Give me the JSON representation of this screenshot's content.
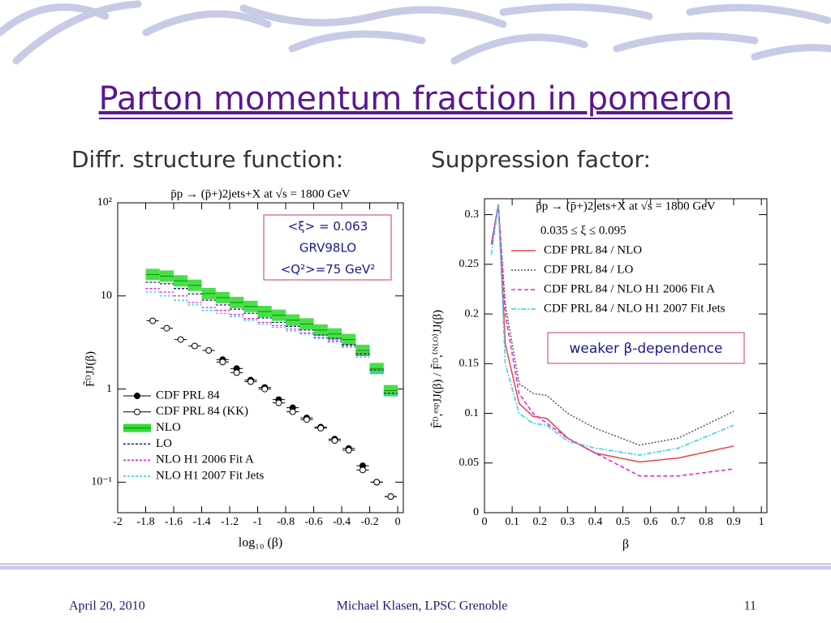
{
  "slide": {
    "title": "Parton momentum fraction in pomeron",
    "left_heading": "Diffr. structure function:",
    "right_heading": "Suppression factor:",
    "footer_date": "April 20, 2010",
    "footer_author": "Michael Klasen, LPSC Grenoble",
    "footer_page": "11"
  },
  "chart_data": [
    {
      "type": "scatter",
      "title": "p̄p → (p̄+)2jets+X  at √s = 1800 GeV",
      "x_label": "log₁₀ (β)",
      "y_label": "F̃ᴰJJ(β)",
      "annotation": [
        "<ξ> = 0.063",
        "GRV98LO",
        "<Q²>=75 GeV²"
      ],
      "log_y": true,
      "legend": "lower left",
      "xlim": [
        -2,
        0.04
      ],
      "xticks": [
        -2,
        -1.8,
        -1.6,
        -1.4,
        -1.2,
        -1,
        -0.8,
        -0.6,
        -0.4,
        -0.2,
        0
      ],
      "ylim": [
        0.047,
        100
      ],
      "yticks": [
        {
          "value": 100,
          "label": "10²"
        },
        10,
        1,
        {
          "value": 0.1,
          "label": "10⁻¹"
        }
      ],
      "series": [
        {
          "name": "CDF PRL 84",
          "marker": "filled",
          "color": "#000000",
          "x": [
            -1.25,
            -1.15,
            -1.05,
            -0.95,
            -0.85,
            -0.75,
            -0.65,
            -0.55,
            -0.45,
            -0.35,
            -0.25,
            -0.15,
            -0.05
          ],
          "values": [
            2.07,
            1.66,
            1.25,
            1.04,
            0.77,
            0.63,
            0.49,
            0.39,
            0.29,
            0.23,
            0.15,
            0.1,
            0.07
          ]
        },
        {
          "name": "CDF PRL 84 (KK)",
          "marker": "open",
          "color": "#000000",
          "x": [
            -1.75,
            -1.65,
            -1.55,
            -1.45,
            -1.35,
            -1.25,
            -1.15,
            -1.05,
            -0.95,
            -0.85,
            -0.75,
            -0.65,
            -0.55,
            -0.45,
            -0.35,
            -0.25,
            -0.15,
            -0.05
          ],
          "values": [
            5.4,
            4.5,
            3.4,
            2.9,
            2.6,
            1.95,
            1.5,
            1.2,
            1.0,
            0.71,
            0.57,
            0.47,
            0.38,
            0.28,
            0.22,
            0.135,
            0.1,
            0.07
          ]
        },
        {
          "name": "NLO",
          "marker": "band",
          "color": "#33dd33",
          "x": [
            -1.75,
            -1.65,
            -1.55,
            -1.45,
            -1.35,
            -1.25,
            -1.15,
            -1.05,
            -0.95,
            -0.85,
            -0.75,
            -0.65,
            -0.55,
            -0.45,
            -0.35,
            -0.25,
            -0.15,
            -0.05
          ],
          "values": [
            17,
            16.3,
            14.5,
            13,
            10.6,
            9.6,
            8.5,
            7.7,
            6.8,
            6.2,
            5.5,
            5.0,
            4.3,
            3.9,
            3.4,
            2.6,
            1.66,
            0.96
          ]
        },
        {
          "name": "LO",
          "marker": "dashed",
          "color": "#1a1a8c",
          "x": [
            -1.75,
            -1.65,
            -1.55,
            -1.45,
            -1.35,
            -1.25,
            -1.15,
            -1.05,
            -0.95,
            -0.85,
            -0.75,
            -0.65,
            -0.55,
            -0.45,
            -0.35,
            -0.25,
            -0.15,
            -0.05
          ],
          "values": [
            14,
            13.5,
            12,
            10.5,
            9,
            8,
            7.2,
            6.5,
            5.8,
            5.2,
            4.7,
            4.3,
            3.8,
            3.5,
            3.0,
            2.4,
            1.6,
            0.9
          ]
        },
        {
          "name": "NLO H1 2006 Fit A",
          "marker": "dashed",
          "color": "#e020e0",
          "x": [
            -1.75,
            -1.65,
            -1.55,
            -1.45,
            -1.35,
            -1.25,
            -1.15,
            -1.05,
            -0.95,
            -0.85,
            -0.75,
            -0.65,
            -0.55,
            -0.45,
            -0.35,
            -0.25,
            -0.15,
            -0.05
          ],
          "values": [
            12,
            11,
            10,
            8.5,
            7.5,
            7,
            6.3,
            5.7,
            5.2,
            4.8,
            4.4,
            4,
            3.6,
            3.3,
            2.9,
            2.3,
            1.5,
            0.85
          ]
        },
        {
          "name": "NLO H1 2007 Fit Jets",
          "marker": "dashed",
          "color": "#30d0e0",
          "x": [
            -1.75,
            -1.65,
            -1.55,
            -1.45,
            -1.35,
            -1.25,
            -1.15,
            -1.05,
            -0.95,
            -0.85,
            -0.75,
            -0.65,
            -0.55,
            -0.45,
            -0.35,
            -0.25,
            -0.15,
            -0.05
          ],
          "values": [
            11,
            10,
            9,
            8,
            7,
            6.5,
            6,
            5.5,
            5,
            4.6,
            4.2,
            3.9,
            3.5,
            3.2,
            2.8,
            2.2,
            1.5,
            0.85
          ]
        }
      ]
    },
    {
      "type": "line",
      "title": "p̄p → (p̄+)2jets+X  at √s = 1800 GeV",
      "x_label": "β",
      "y_label": "F̃ᴰ,ᵉˣᵖJJ(β) / F̃ᴰ,⁽ᴺᴸᴼ⁾JJ(β)",
      "annotation": [
        "weaker β-dependence"
      ],
      "legend": "upper right",
      "legend_title": "0.035 ≤ ξ ≤ 0.095",
      "xlim": [
        0,
        1.02
      ],
      "xticks": [
        0,
        0.1,
        0.2,
        0.3,
        0.4,
        0.5,
        0.6,
        0.7,
        0.8,
        0.9,
        1
      ],
      "ylim": [
        0,
        0.316
      ],
      "yticks": [
        0,
        0.05,
        0.1,
        0.15,
        0.2,
        0.25,
        0.3
      ],
      "x": [
        0.025,
        0.05,
        0.075,
        0.125,
        0.175,
        0.225,
        0.3,
        0.4,
        0.56,
        0.7,
        0.9
      ],
      "series": [
        {
          "name": "CDF PRL 84 / NLO",
          "color": "#ee4444",
          "linestyle": "solid",
          "values": [
            0.27,
            0.31,
            0.17,
            0.11,
            0.097,
            0.095,
            0.075,
            0.06,
            0.051,
            0.055,
            0.067
          ]
        },
        {
          "name": "CDF PRL 84 / LO",
          "color": "#555555",
          "linestyle": "dotted",
          "values": [
            0.27,
            0.31,
            0.21,
            0.13,
            0.12,
            0.118,
            0.1,
            0.085,
            0.068,
            0.075,
            0.102
          ]
        },
        {
          "name": "CDF PRL 84 / NLO H1 2006 Fit A",
          "color": "#e020e0",
          "linestyle": "dashed",
          "values": [
            0.27,
            0.31,
            0.2,
            0.12,
            0.1,
            0.09,
            0.075,
            0.06,
            0.037,
            0.037,
            0.044
          ]
        },
        {
          "name": "CDF PRL 84 / NLO H1 2007 Fit Jets",
          "color": "#30d0e0",
          "linestyle": "dashdot",
          "values": [
            0.26,
            0.31,
            0.15,
            0.1,
            0.09,
            0.088,
            0.072,
            0.065,
            0.058,
            0.065,
            0.088
          ]
        }
      ]
    }
  ]
}
